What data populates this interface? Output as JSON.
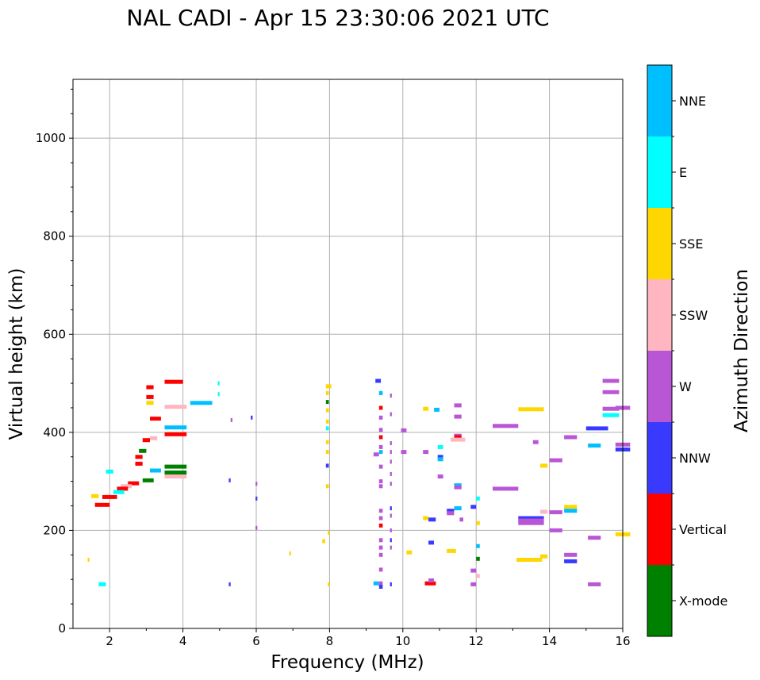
{
  "chart_data": {
    "type": "scatter",
    "title": "NAL CADI - Apr 15 23:30:06 2021 UTC",
    "xlabel": "Frequency (MHz)",
    "ylabel": "Virtual height (km)",
    "xlim": [
      1,
      16
    ],
    "ylim": [
      0,
      1120
    ],
    "x_ticks": [
      2,
      4,
      6,
      8,
      10,
      12,
      14,
      16
    ],
    "x_tick_labels": [
      "2",
      "4",
      "6",
      "8",
      "10",
      "12",
      "14",
      "16"
    ],
    "y_ticks": [
      0,
      200,
      400,
      600,
      800,
      1000
    ],
    "y_tick_labels": [
      "0",
      "200",
      "400",
      "600",
      "800",
      "1000"
    ],
    "grid": true,
    "colorbar": {
      "label": "Azimuth Direction",
      "categories": [
        {
          "name": "X-mode",
          "color": "#008000"
        },
        {
          "name": "Vertical",
          "color": "#ff0000"
        },
        {
          "name": "NNW",
          "color": "#3a3aff"
        },
        {
          "name": "W",
          "color": "#b956d6"
        },
        {
          "name": "SSW",
          "color": "#ffb6c1"
        },
        {
          "name": "SSE",
          "color": "#ffd700"
        },
        {
          "name": "E",
          "color": "#00ffff"
        },
        {
          "name": "NNE",
          "color": "#00bfff"
        }
      ]
    },
    "echoes": [
      {
        "f": 3.5,
        "h": 503,
        "w": 0.5,
        "c": "Vertical"
      },
      {
        "f": 3.0,
        "h": 492,
        "w": 0.2,
        "c": "Vertical"
      },
      {
        "f": 3.0,
        "h": 472,
        "w": 0.2,
        "c": "Vertical"
      },
      {
        "f": 3.0,
        "h": 460,
        "w": 0.2,
        "c": "SSE"
      },
      {
        "f": 3.5,
        "h": 452,
        "w": 0.6,
        "c": "SSW"
      },
      {
        "f": 4.2,
        "h": 460,
        "w": 0.6,
        "c": "NNE"
      },
      {
        "f": 3.1,
        "h": 428,
        "w": 0.3,
        "c": "Vertical"
      },
      {
        "f": 3.5,
        "h": 410,
        "w": 0.6,
        "c": "NNE"
      },
      {
        "f": 3.5,
        "h": 396,
        "w": 0.6,
        "c": "Vertical"
      },
      {
        "f": 3.1,
        "h": 388,
        "w": 0.2,
        "c": "SSW"
      },
      {
        "f": 2.9,
        "h": 384,
        "w": 0.2,
        "c": "Vertical"
      },
      {
        "f": 2.8,
        "h": 362,
        "w": 0.2,
        "c": "X-mode"
      },
      {
        "f": 2.7,
        "h": 350,
        "w": 0.2,
        "c": "Vertical"
      },
      {
        "f": 2.7,
        "h": 336,
        "w": 0.2,
        "c": "Vertical"
      },
      {
        "f": 3.5,
        "h": 330,
        "w": 0.6,
        "c": "X-mode"
      },
      {
        "f": 3.1,
        "h": 322,
        "w": 0.3,
        "c": "NNE"
      },
      {
        "f": 3.5,
        "h": 318,
        "w": 0.6,
        "c": "X-mode"
      },
      {
        "f": 3.5,
        "h": 310,
        "w": 0.6,
        "c": "SSW"
      },
      {
        "f": 2.9,
        "h": 302,
        "w": 0.3,
        "c": "X-mode"
      },
      {
        "f": 2.5,
        "h": 296,
        "w": 0.3,
        "c": "Vertical"
      },
      {
        "f": 2.3,
        "h": 290,
        "w": 0.3,
        "c": "SSW"
      },
      {
        "f": 2.2,
        "h": 285,
        "w": 0.3,
        "c": "Vertical"
      },
      {
        "f": 2.1,
        "h": 278,
        "w": 0.3,
        "c": "E"
      },
      {
        "f": 1.8,
        "h": 268,
        "w": 0.4,
        "c": "Vertical"
      },
      {
        "f": 1.6,
        "h": 252,
        "w": 0.4,
        "c": "Vertical"
      },
      {
        "f": 1.5,
        "h": 270,
        "w": 0.2,
        "c": "SSE"
      },
      {
        "f": 1.9,
        "h": 320,
        "w": 0.2,
        "c": "E"
      },
      {
        "f": 1.7,
        "h": 90,
        "w": 0.2,
        "c": "E"
      },
      {
        "f": 1.4,
        "h": 140,
        "w": 0.05,
        "c": "SSE"
      },
      {
        "f": 4.95,
        "h": 500,
        "w": 0.05,
        "c": "E"
      },
      {
        "f": 4.95,
        "h": 478,
        "w": 0.05,
        "c": "E"
      },
      {
        "f": 5.85,
        "h": 430,
        "w": 0.05,
        "c": "NNW"
      },
      {
        "f": 5.3,
        "h": 425,
        "w": 0.05,
        "c": "W"
      },
      {
        "f": 5.25,
        "h": 302,
        "w": 0.05,
        "c": "NNW"
      },
      {
        "f": 5.98,
        "h": 295,
        "w": 0.05,
        "c": "W"
      },
      {
        "f": 5.98,
        "h": 265,
        "w": 0.05,
        "c": "NNW"
      },
      {
        "f": 5.98,
        "h": 205,
        "w": 0.05,
        "c": "W"
      },
      {
        "f": 5.25,
        "h": 90,
        "w": 0.05,
        "c": "NNW"
      },
      {
        "f": 6.9,
        "h": 153,
        "w": 0.05,
        "c": "SSE"
      },
      {
        "f": 7.8,
        "h": 178,
        "w": 0.08,
        "c": "SSE"
      },
      {
        "f": 7.9,
        "h": 494,
        "w": 0.15,
        "c": "SSE"
      },
      {
        "f": 7.9,
        "h": 480,
        "w": 0.08,
        "c": "SSE"
      },
      {
        "f": 7.9,
        "h": 462,
        "w": 0.08,
        "c": "X-mode"
      },
      {
        "f": 7.9,
        "h": 445,
        "w": 0.08,
        "c": "SSE"
      },
      {
        "f": 7.9,
        "h": 422,
        "w": 0.08,
        "c": "SSE"
      },
      {
        "f": 7.9,
        "h": 408,
        "w": 0.08,
        "c": "E"
      },
      {
        "f": 7.9,
        "h": 380,
        "w": 0.08,
        "c": "SSE"
      },
      {
        "f": 7.9,
        "h": 360,
        "w": 0.08,
        "c": "SSE"
      },
      {
        "f": 7.9,
        "h": 332,
        "w": 0.08,
        "c": "NNW"
      },
      {
        "f": 7.9,
        "h": 290,
        "w": 0.08,
        "c": "SSE"
      },
      {
        "f": 7.95,
        "h": 195,
        "w": 0.05,
        "c": "SSE"
      },
      {
        "f": 7.95,
        "h": 90,
        "w": 0.05,
        "c": "SSE"
      },
      {
        "f": 9.25,
        "h": 505,
        "w": 0.15,
        "c": "NNW"
      },
      {
        "f": 9.35,
        "h": 480,
        "w": 0.1,
        "c": "NNE"
      },
      {
        "f": 9.35,
        "h": 450,
        "w": 0.1,
        "c": "Vertical"
      },
      {
        "f": 9.35,
        "h": 430,
        "w": 0.1,
        "c": "W"
      },
      {
        "f": 9.35,
        "h": 405,
        "w": 0.1,
        "c": "W"
      },
      {
        "f": 9.35,
        "h": 390,
        "w": 0.1,
        "c": "Vertical"
      },
      {
        "f": 9.35,
        "h": 370,
        "w": 0.1,
        "c": "W"
      },
      {
        "f": 9.35,
        "h": 360,
        "w": 0.1,
        "c": "NNE"
      },
      {
        "f": 9.2,
        "h": 355,
        "w": 0.15,
        "c": "W"
      },
      {
        "f": 9.35,
        "h": 330,
        "w": 0.1,
        "c": "W"
      },
      {
        "f": 9.35,
        "h": 300,
        "w": 0.1,
        "c": "W"
      },
      {
        "f": 9.35,
        "h": 290,
        "w": 0.1,
        "c": "W"
      },
      {
        "f": 9.35,
        "h": 240,
        "w": 0.1,
        "c": "W"
      },
      {
        "f": 9.35,
        "h": 225,
        "w": 0.1,
        "c": "W"
      },
      {
        "f": 9.35,
        "h": 210,
        "w": 0.1,
        "c": "Vertical"
      },
      {
        "f": 9.35,
        "h": 180,
        "w": 0.1,
        "c": "W"
      },
      {
        "f": 9.35,
        "h": 165,
        "w": 0.1,
        "c": "W"
      },
      {
        "f": 9.35,
        "h": 150,
        "w": 0.1,
        "c": "W"
      },
      {
        "f": 9.35,
        "h": 120,
        "w": 0.1,
        "c": "W"
      },
      {
        "f": 9.2,
        "h": 92,
        "w": 0.15,
        "c": "NNE"
      },
      {
        "f": 9.35,
        "h": 92,
        "w": 0.1,
        "c": "W"
      },
      {
        "f": 9.35,
        "h": 85,
        "w": 0.1,
        "c": "NNW"
      },
      {
        "f": 9.65,
        "h": 475,
        "w": 0.05,
        "c": "W"
      },
      {
        "f": 9.65,
        "h": 437,
        "w": 0.05,
        "c": "W"
      },
      {
        "f": 9.65,
        "h": 378,
        "w": 0.05,
        "c": "W"
      },
      {
        "f": 9.65,
        "h": 360,
        "w": 0.05,
        "c": "W"
      },
      {
        "f": 9.65,
        "h": 340,
        "w": 0.05,
        "c": "W"
      },
      {
        "f": 9.65,
        "h": 315,
        "w": 0.05,
        "c": "W"
      },
      {
        "f": 9.65,
        "h": 295,
        "w": 0.05,
        "c": "W"
      },
      {
        "f": 9.65,
        "h": 245,
        "w": 0.05,
        "c": "NNW"
      },
      {
        "f": 9.65,
        "h": 230,
        "w": 0.05,
        "c": "W"
      },
      {
        "f": 9.65,
        "h": 200,
        "w": 0.05,
        "c": "W"
      },
      {
        "f": 9.65,
        "h": 180,
        "w": 0.05,
        "c": "NNW"
      },
      {
        "f": 9.65,
        "h": 165,
        "w": 0.05,
        "c": "W"
      },
      {
        "f": 9.65,
        "h": 90,
        "w": 0.05,
        "c": "NNW"
      },
      {
        "f": 9.95,
        "h": 404,
        "w": 0.15,
        "c": "W"
      },
      {
        "f": 9.95,
        "h": 360,
        "w": 0.15,
        "c": "W"
      },
      {
        "f": 10.1,
        "h": 155,
        "w": 0.15,
        "c": "SSE"
      },
      {
        "f": 10.55,
        "h": 448,
        "w": 0.15,
        "c": "SSE"
      },
      {
        "f": 10.55,
        "h": 360,
        "w": 0.15,
        "c": "W"
      },
      {
        "f": 10.55,
        "h": 225,
        "w": 0.15,
        "c": "SSE"
      },
      {
        "f": 10.7,
        "h": 222,
        "w": 0.2,
        "c": "NNW"
      },
      {
        "f": 10.7,
        "h": 175,
        "w": 0.15,
        "c": "NNW"
      },
      {
        "f": 10.6,
        "h": 92,
        "w": 0.3,
        "c": "Vertical"
      },
      {
        "f": 10.7,
        "h": 98,
        "w": 0.15,
        "c": "W"
      },
      {
        "f": 10.85,
        "h": 446,
        "w": 0.15,
        "c": "NNE"
      },
      {
        "f": 10.95,
        "h": 370,
        "w": 0.15,
        "c": "E"
      },
      {
        "f": 10.95,
        "h": 350,
        "w": 0.15,
        "c": "NNW"
      },
      {
        "f": 10.95,
        "h": 345,
        "w": 0.15,
        "c": "NNE"
      },
      {
        "f": 10.95,
        "h": 310,
        "w": 0.15,
        "c": "W"
      },
      {
        "f": 11.2,
        "h": 240,
        "w": 0.2,
        "c": "NNW"
      },
      {
        "f": 11.2,
        "h": 235,
        "w": 0.2,
        "c": "W"
      },
      {
        "f": 11.2,
        "h": 158,
        "w": 0.25,
        "c": "SSE"
      },
      {
        "f": 11.4,
        "h": 455,
        "w": 0.2,
        "c": "W"
      },
      {
        "f": 11.4,
        "h": 432,
        "w": 0.2,
        "c": "W"
      },
      {
        "f": 11.4,
        "h": 393,
        "w": 0.2,
        "c": "W"
      },
      {
        "f": 11.4,
        "h": 390,
        "w": 0.2,
        "c": "Vertical"
      },
      {
        "f": 11.3,
        "h": 385,
        "w": 0.4,
        "c": "SSW"
      },
      {
        "f": 11.4,
        "h": 292,
        "w": 0.2,
        "c": "NNE"
      },
      {
        "f": 11.4,
        "h": 288,
        "w": 0.2,
        "c": "W"
      },
      {
        "f": 11.4,
        "h": 245,
        "w": 0.2,
        "c": "NNE"
      },
      {
        "f": 11.55,
        "h": 222,
        "w": 0.1,
        "c": "W"
      },
      {
        "f": 11.85,
        "h": 248,
        "w": 0.15,
        "c": "NNW"
      },
      {
        "f": 11.85,
        "h": 118,
        "w": 0.15,
        "c": "W"
      },
      {
        "f": 11.85,
        "h": 90,
        "w": 0.15,
        "c": "W"
      },
      {
        "f": 12.0,
        "h": 265,
        "w": 0.1,
        "c": "E"
      },
      {
        "f": 12.0,
        "h": 215,
        "w": 0.1,
        "c": "SSE"
      },
      {
        "f": 12.0,
        "h": 168,
        "w": 0.1,
        "c": "NNE"
      },
      {
        "f": 12.0,
        "h": 142,
        "w": 0.1,
        "c": "X-mode"
      },
      {
        "f": 12.0,
        "h": 107,
        "w": 0.1,
        "c": "SSW"
      },
      {
        "f": 12.45,
        "h": 413,
        "w": 0.7,
        "c": "W"
      },
      {
        "f": 12.45,
        "h": 285,
        "w": 0.7,
        "c": "W"
      },
      {
        "f": 13.15,
        "h": 447,
        "w": 0.7,
        "c": "SSE"
      },
      {
        "f": 13.15,
        "h": 225,
        "w": 0.7,
        "c": "NNW"
      },
      {
        "f": 13.15,
        "h": 220,
        "w": 0.7,
        "c": "W"
      },
      {
        "f": 13.15,
        "h": 215,
        "w": 0.7,
        "c": "W"
      },
      {
        "f": 13.1,
        "h": 140,
        "w": 0.7,
        "c": "SSE"
      },
      {
        "f": 13.55,
        "h": 380,
        "w": 0.15,
        "c": "W"
      },
      {
        "f": 13.75,
        "h": 332,
        "w": 0.2,
        "c": "SSE"
      },
      {
        "f": 13.75,
        "h": 238,
        "w": 0.2,
        "c": "SSW"
      },
      {
        "f": 13.75,
        "h": 147,
        "w": 0.2,
        "c": "SSE"
      },
      {
        "f": 14.0,
        "h": 343,
        "w": 0.35,
        "c": "W"
      },
      {
        "f": 14.0,
        "h": 237,
        "w": 0.35,
        "c": "W"
      },
      {
        "f": 14.0,
        "h": 200,
        "w": 0.35,
        "c": "W"
      },
      {
        "f": 14.4,
        "h": 390,
        "w": 0.35,
        "c": "W"
      },
      {
        "f": 14.4,
        "h": 248,
        "w": 0.35,
        "c": "SSE"
      },
      {
        "f": 14.4,
        "h": 240,
        "w": 0.35,
        "c": "NNE"
      },
      {
        "f": 14.4,
        "h": 150,
        "w": 0.35,
        "c": "W"
      },
      {
        "f": 14.4,
        "h": 137,
        "w": 0.35,
        "c": "NNW"
      },
      {
        "f": 15.0,
        "h": 408,
        "w": 0.6,
        "c": "NNW"
      },
      {
        "f": 15.05,
        "h": 373,
        "w": 0.35,
        "c": "NNE"
      },
      {
        "f": 15.05,
        "h": 185,
        "w": 0.35,
        "c": "W"
      },
      {
        "f": 15.05,
        "h": 90,
        "w": 0.35,
        "c": "W"
      },
      {
        "f": 15.45,
        "h": 505,
        "w": 0.45,
        "c": "W"
      },
      {
        "f": 15.45,
        "h": 482,
        "w": 0.45,
        "c": "W"
      },
      {
        "f": 15.45,
        "h": 448,
        "w": 0.45,
        "c": "W"
      },
      {
        "f": 15.45,
        "h": 435,
        "w": 0.45,
        "c": "E"
      },
      {
        "f": 15.8,
        "h": 450,
        "w": 0.4,
        "c": "W"
      },
      {
        "f": 15.8,
        "h": 375,
        "w": 0.4,
        "c": "W"
      },
      {
        "f": 15.8,
        "h": 365,
        "w": 0.4,
        "c": "NNW"
      },
      {
        "f": 15.8,
        "h": 192,
        "w": 0.4,
        "c": "SSE"
      }
    ]
  }
}
